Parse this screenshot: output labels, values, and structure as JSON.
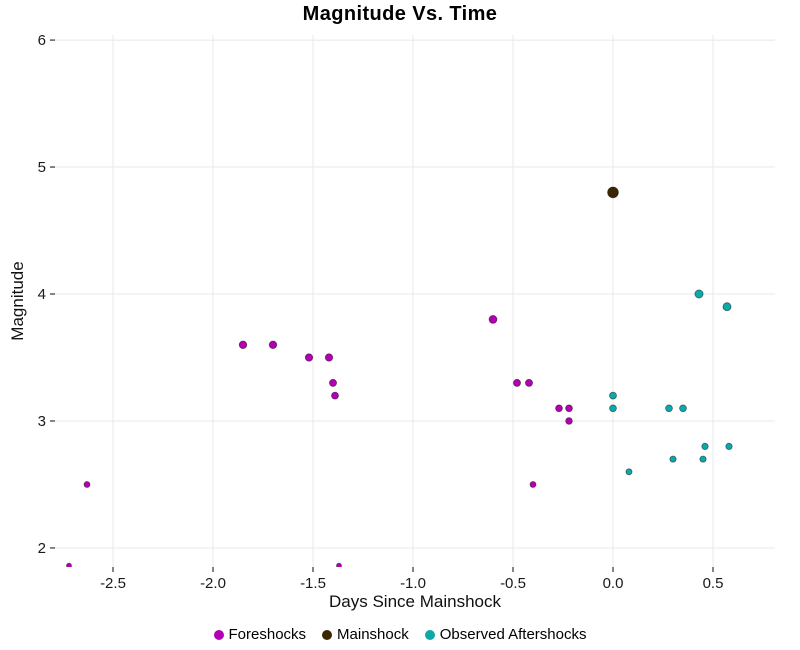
{
  "chart_data": {
    "type": "scatter",
    "title": "Magnitude Vs. Time",
    "xlabel": "Days Since Mainshock",
    "ylabel": "Magnitude",
    "xlim": [
      -2.79,
      0.81
    ],
    "ylim": [
      1.85,
      6.04
    ],
    "x_ticks": [
      -2.5,
      -2.0,
      -1.5,
      -1.0,
      -0.5,
      0.0,
      0.5
    ],
    "x_tick_labels": [
      "-2.5",
      "-2.0",
      "-1.5",
      "-1.0",
      "-0.5",
      "0.0",
      "0.5"
    ],
    "y_ticks": [
      2,
      3,
      4,
      5,
      6
    ],
    "y_tick_labels": [
      "2",
      "3",
      "4",
      "5",
      "6"
    ],
    "grid": true,
    "grid_color": "#e8e8e8",
    "background_color": "#ffffff",
    "legend_position": "bottom",
    "size_by": "magnitude",
    "series": [
      {
        "name": "Foreshocks",
        "color": "#b300b3",
        "points": [
          [
            -2.72,
            1.86
          ],
          [
            -2.63,
            2.5
          ],
          [
            -1.85,
            3.6
          ],
          [
            -1.7,
            3.6
          ],
          [
            -1.52,
            3.5
          ],
          [
            -1.42,
            3.5
          ],
          [
            -1.4,
            3.3
          ],
          [
            -1.39,
            3.2
          ],
          [
            -1.37,
            1.86
          ],
          [
            -0.6,
            3.8
          ],
          [
            -0.48,
            3.3
          ],
          [
            -0.42,
            3.3
          ],
          [
            -0.4,
            2.5
          ],
          [
            -0.27,
            3.1
          ],
          [
            -0.22,
            3.1
          ],
          [
            -0.22,
            3.0
          ]
        ]
      },
      {
        "name": "Mainshock",
        "color": "#3b2604",
        "points": [
          [
            0.0,
            4.8
          ]
        ]
      },
      {
        "name": "Observed Aftershocks",
        "color": "#0da8a8",
        "points": [
          [
            0.0,
            3.2
          ],
          [
            0.0,
            3.1
          ],
          [
            0.08,
            2.6
          ],
          [
            0.28,
            3.1
          ],
          [
            0.3,
            2.7
          ],
          [
            0.35,
            3.1
          ],
          [
            0.43,
            4.0
          ],
          [
            0.45,
            2.7
          ],
          [
            0.46,
            2.8
          ],
          [
            0.57,
            3.9
          ],
          [
            0.58,
            2.8
          ]
        ]
      }
    ]
  }
}
